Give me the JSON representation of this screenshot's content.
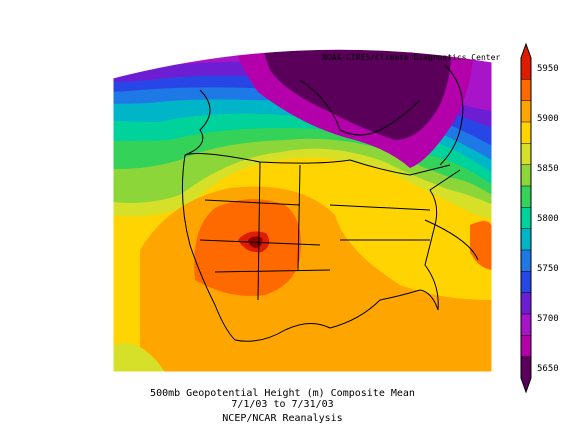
{
  "header": {
    "credit": "NOAA-CIRES/Climate Diagnostics Center"
  },
  "caption": {
    "line1": "500mb Geopotential Height (m) Composite Mean",
    "line2": "7/1/03  to 7/31/03",
    "line3": "NCEP/NCAR Reanalysis"
  },
  "colorbar": {
    "labels": [
      "5950",
      "5900",
      "5850",
      "5800",
      "5750",
      "5700",
      "5650"
    ],
    "colors": [
      "#dd1c00",
      "#ff6a00",
      "#ffa500",
      "#ffd400",
      "#d7e028",
      "#8cd63a",
      "#35d25a",
      "#00d29b",
      "#00b5c8",
      "#1e78e6",
      "#2846e6",
      "#6e1ed2",
      "#a814c8",
      "#b400aa",
      "#5a005a"
    ]
  },
  "map": {
    "region": "North America",
    "colors": {
      "lowest": "#5a005a",
      "low": "#b400aa",
      "violet": "#6e1ed2",
      "blue": "#2846e6",
      "sky": "#00b5c8",
      "teal": "#00d29b",
      "green": "#35d25a",
      "lime": "#8cd63a",
      "yellow_green": "#d7e028",
      "yellow": "#ffd400",
      "orange_light": "#ffa500",
      "orange": "#ff6a00",
      "red": "#dd1c00",
      "dark_red": "#8c0000"
    }
  }
}
